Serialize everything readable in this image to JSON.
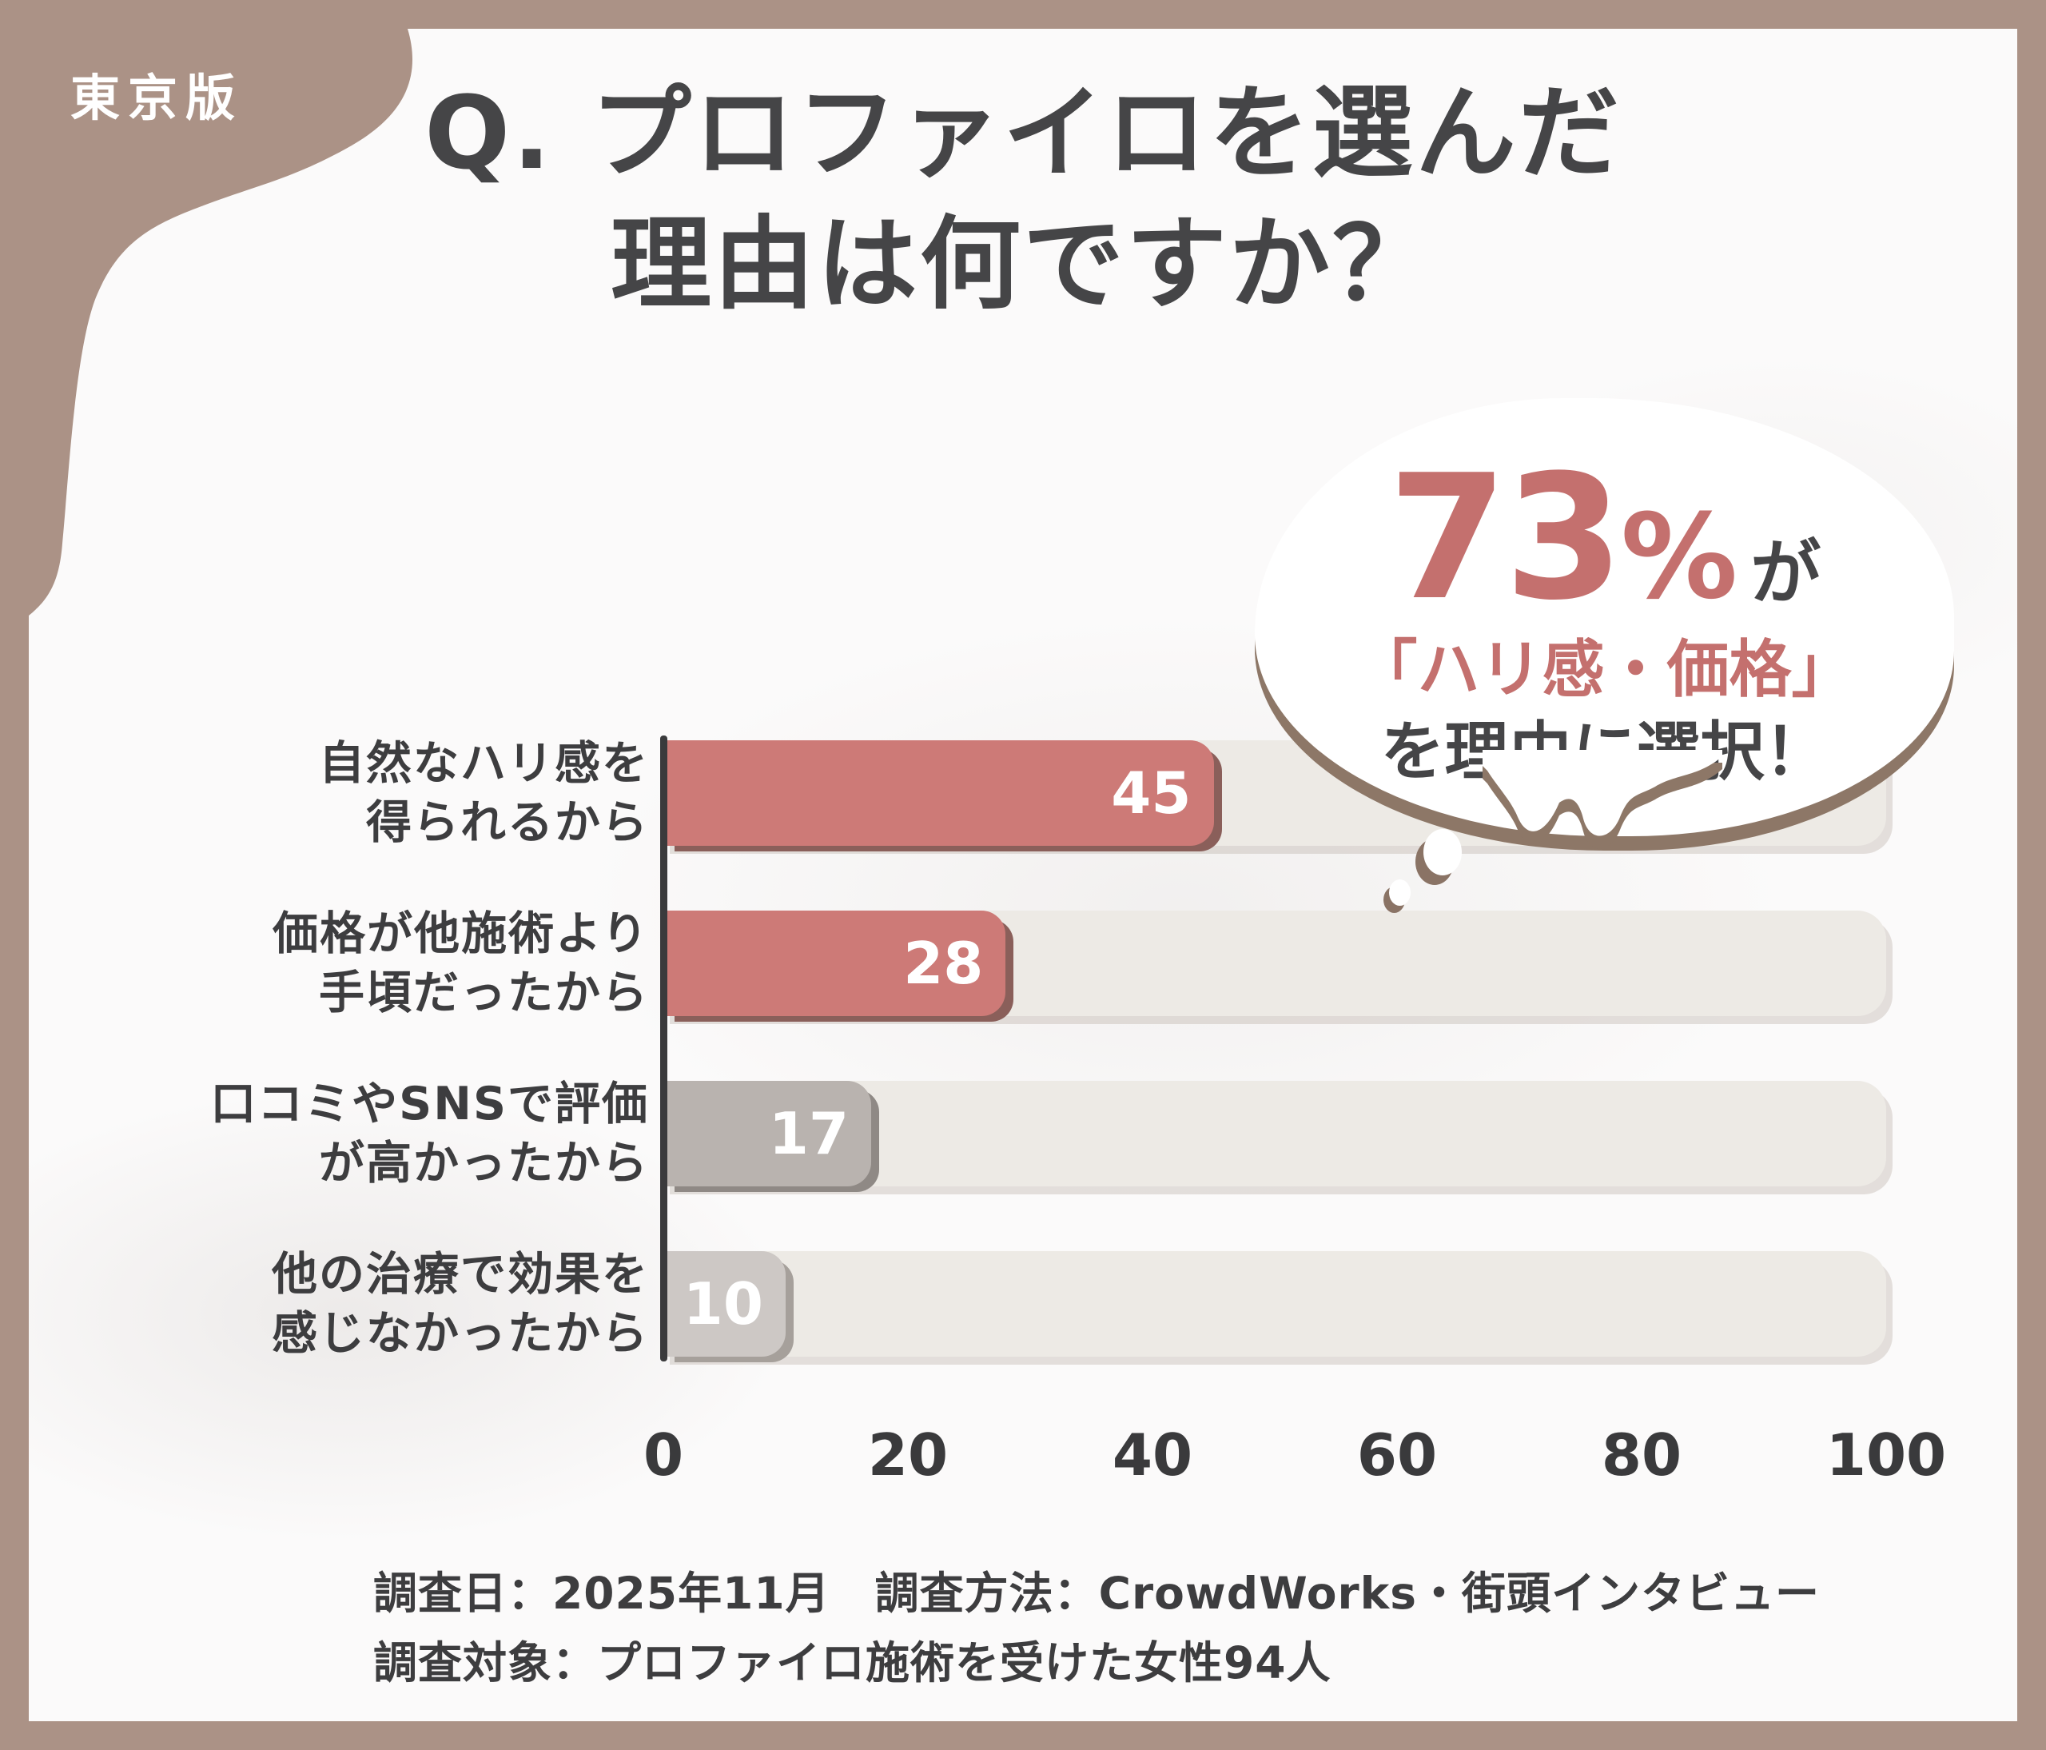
{
  "badge": {
    "label": "東京版"
  },
  "title": {
    "line1": "Q. プロファイロを選んだ",
    "line2": "理由は何ですか？"
  },
  "callout": {
    "number": "73",
    "unit": "%",
    "particle": "が",
    "highlight": "「ハリ感・価格」",
    "conclusion": "を理由に選択！"
  },
  "chart_data": {
    "type": "bar",
    "orientation": "horizontal",
    "title": "Q. プロファイロを選んだ理由は何ですか？",
    "categories": [
      {
        "line1": "自然なハリ感を",
        "line2": "得られるから"
      },
      {
        "line1": "価格が他施術より",
        "line2": "手頃だったから"
      },
      {
        "line1": "口コミやSNSで評価",
        "line2": "が高かったから"
      },
      {
        "line1": "他の治療で効果を",
        "line2": "感じなかったから"
      }
    ],
    "values": [
      45,
      28,
      17,
      10
    ],
    "xlim": [
      0,
      100
    ],
    "x_ticks": [
      "0",
      "20",
      "40",
      "60",
      "80",
      "100"
    ],
    "grid": false,
    "legend": false,
    "bar_colors": [
      "#cd7a77",
      "#cd7a77",
      "#b9b3af",
      "#cdc8c5"
    ],
    "bar_shadow_colors": [
      "#8a5f5a",
      "#8a5f5a",
      "#8f8985",
      "#a6a09b"
    ],
    "track_color": "#edeae5",
    "value_label_color": "#ffffff"
  },
  "footer": {
    "line1": "調査日：2025年11月　調査方法：CrowdWorks・街頭インタビュー",
    "line2": "調査対象：プロファイロ施術を受けた女性94人"
  },
  "colors": {
    "frame": "#ab9286",
    "card_background": "#fbfafa",
    "accent_red": "#c4706e",
    "text_dark": "#454547",
    "bubble_shadow": "#8d7767",
    "axis": "#3a3a3c"
  }
}
